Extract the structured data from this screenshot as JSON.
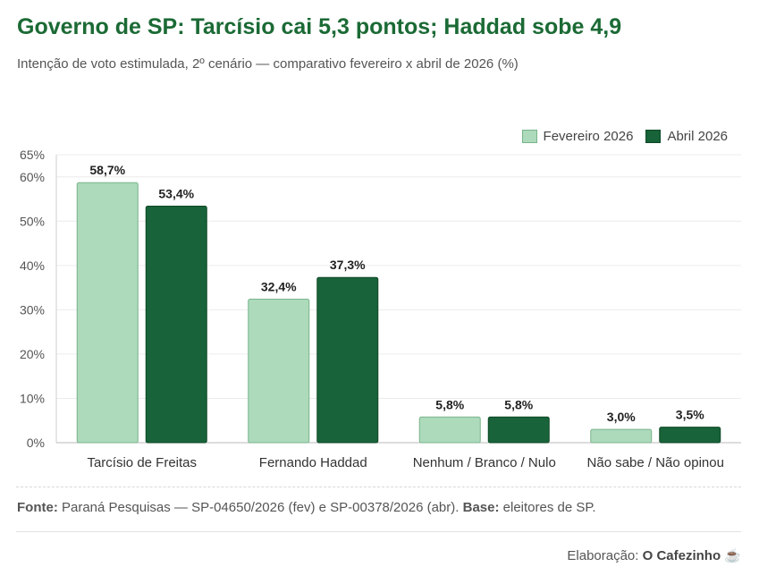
{
  "header": {
    "title": "Governo de SP: Tarcísio cai 5,3 pontos; Haddad sobe 4,9",
    "subtitle": "Intenção de voto estimulada, 2º cenário — comparativo fevereiro x abril de 2026 (%)"
  },
  "legend": {
    "position": "top-right",
    "feb_label": "Fevereiro 2026",
    "abr_label": "Abril 2026"
  },
  "colors": {
    "feb_fill": "#acdabb",
    "feb_stroke": "#79b48b",
    "abr_fill": "#186339",
    "abr_stroke": "#0e4827",
    "title": "#1b6a35"
  },
  "chart_data": {
    "type": "bar",
    "title": "Governo de SP: Tarcísio cai 5,3 pontos; Haddad sobe 4,9",
    "xlabel": "",
    "ylabel": "",
    "ylim": [
      0,
      65
    ],
    "yticks": [
      0,
      10,
      20,
      30,
      40,
      50,
      60,
      65
    ],
    "ytick_labels": [
      "0%",
      "10%",
      "20%",
      "30%",
      "40%",
      "50%",
      "60%",
      "65%"
    ],
    "grid": true,
    "categories": [
      "Tarcísio de Freitas",
      "Fernando Haddad",
      "Nenhum / Branco / Nulo",
      "Não sabe / Não opinou"
    ],
    "series": [
      {
        "name": "Fevereiro 2026",
        "values": [
          58.7,
          32.4,
          5.8,
          3.0
        ],
        "labels": [
          "58,7%",
          "32,4%",
          "5,8%",
          "3,0%"
        ]
      },
      {
        "name": "Abril 2026",
        "values": [
          53.4,
          37.3,
          5.8,
          3.5
        ],
        "labels": [
          "53,4%",
          "37,3%",
          "5,8%",
          "3,5%"
        ]
      }
    ]
  },
  "footer": {
    "source_label": "Fonte:",
    "source_text": "Paraná Pesquisas — SP-04650/2026 (fev) e SP-00378/2026 (abr).",
    "base_label": "Base:",
    "base_text": "eleitores de SP.",
    "credit_label": "Elaboração:",
    "credit_name": "O Cafezinho",
    "credit_icon": "☕"
  }
}
